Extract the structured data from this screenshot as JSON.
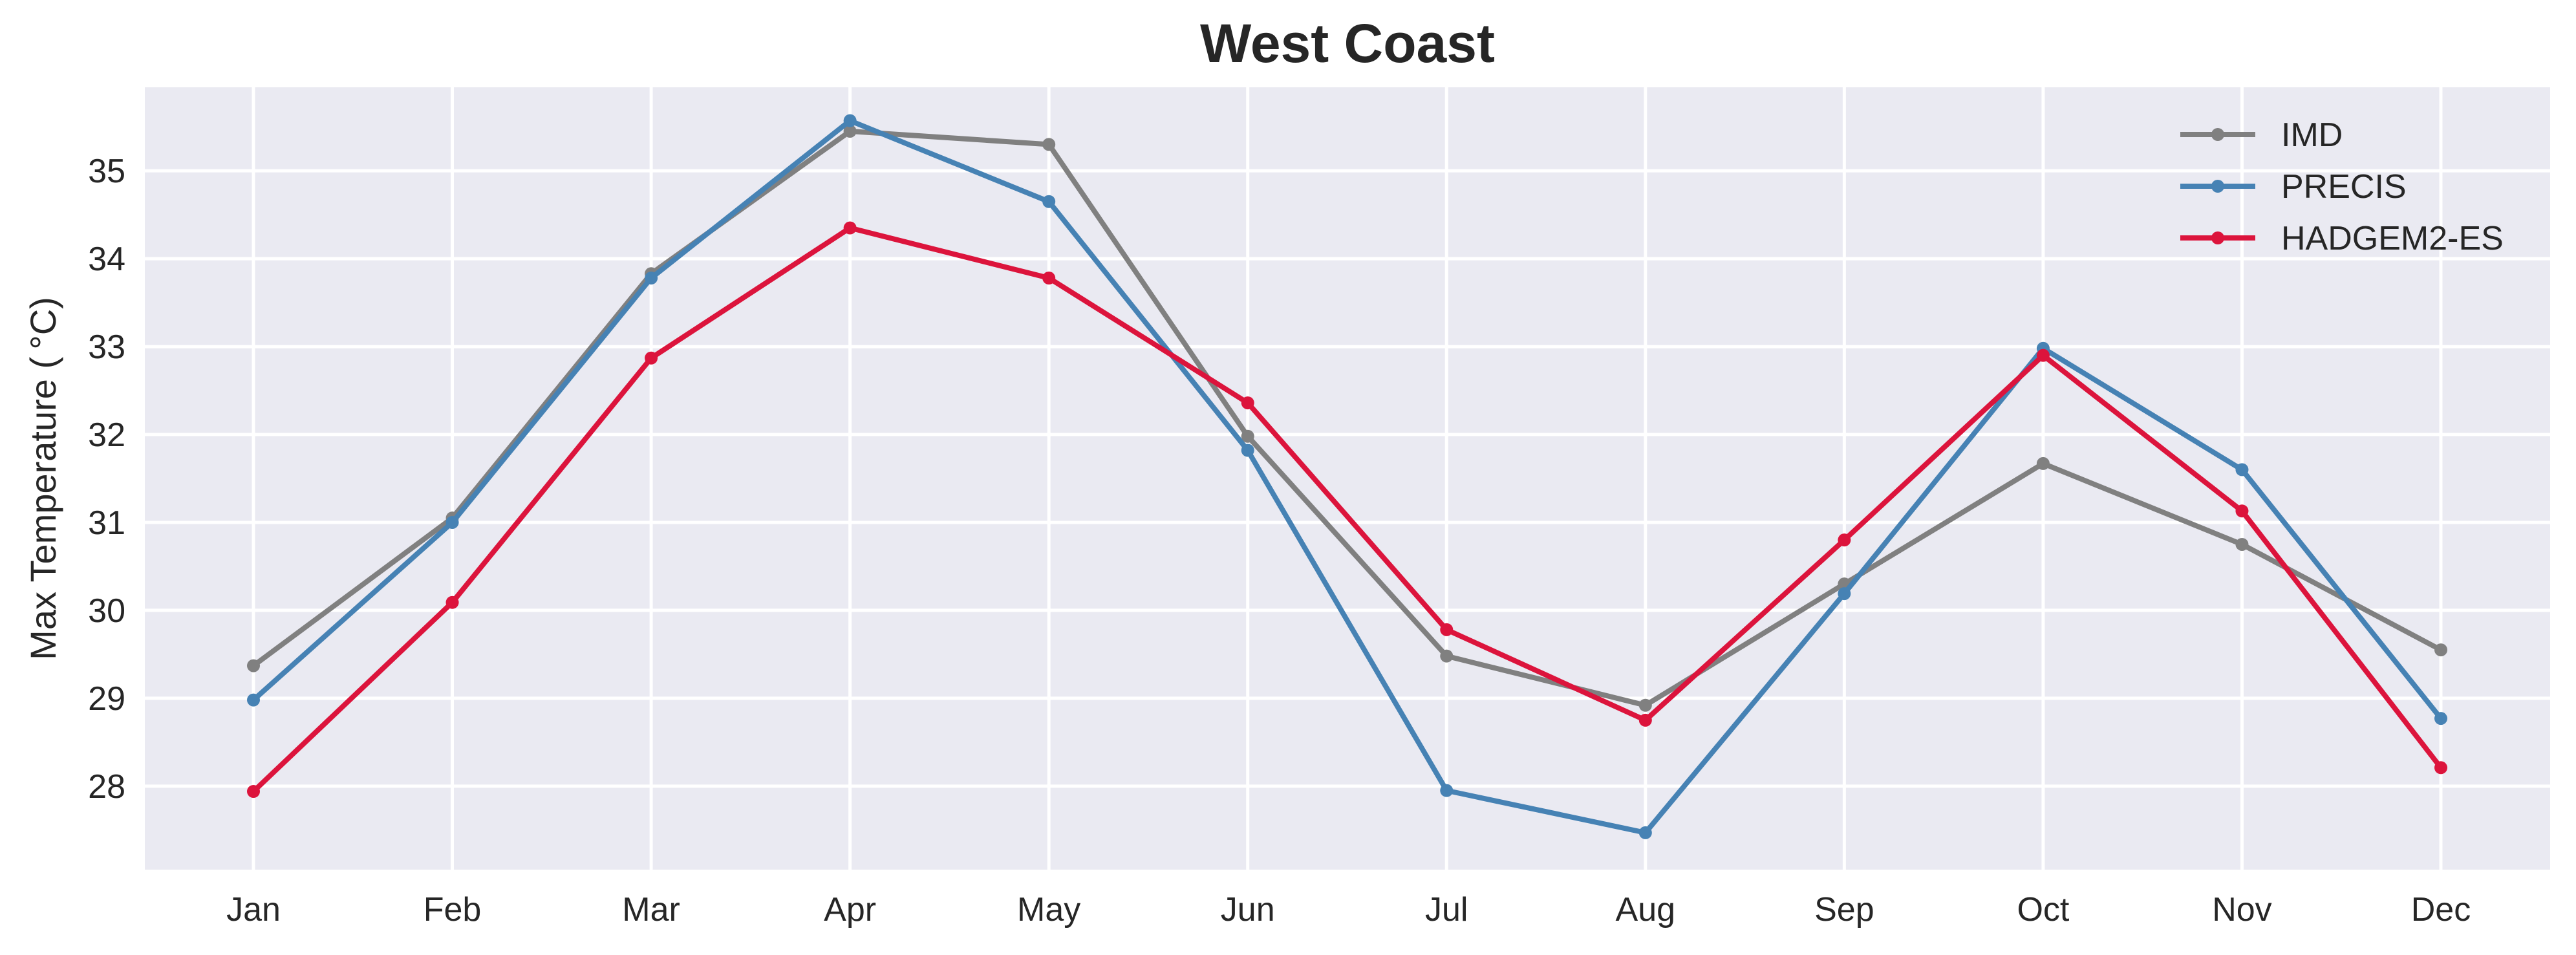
{
  "chart_data": {
    "type": "line",
    "title": "West Coast",
    "xlabel": "",
    "ylabel": "Max Temperature ($^\\circ$C)",
    "ylabel_display": "Max Temperature ( °C)",
    "categories": [
      "Jan",
      "Feb",
      "Mar",
      "Apr",
      "May",
      "Jun",
      "Jul",
      "Aug",
      "Sep",
      "Oct",
      "Nov",
      "Dec"
    ],
    "ylim": [
      27.05,
      35.95
    ],
    "yticks": [
      28,
      29,
      30,
      31,
      32,
      33,
      34,
      35
    ],
    "grid": true,
    "legend_position": "top-right",
    "series": [
      {
        "name": "IMD",
        "color": "#808080",
        "values": [
          29.37,
          31.05,
          33.83,
          35.45,
          35.3,
          31.98,
          29.48,
          28.92,
          30.3,
          31.67,
          30.75,
          29.55
        ]
      },
      {
        "name": "PRECIS",
        "color": "#4682b4",
        "values": [
          28.98,
          31.0,
          33.78,
          35.57,
          34.65,
          31.82,
          27.95,
          27.47,
          30.19,
          32.98,
          31.6,
          28.77
        ]
      },
      {
        "name": "HADGEM2-ES",
        "color": "#dc143c",
        "values": [
          27.94,
          30.09,
          32.87,
          34.35,
          33.78,
          32.36,
          29.78,
          28.75,
          30.8,
          32.9,
          31.13,
          28.21
        ]
      }
    ]
  }
}
